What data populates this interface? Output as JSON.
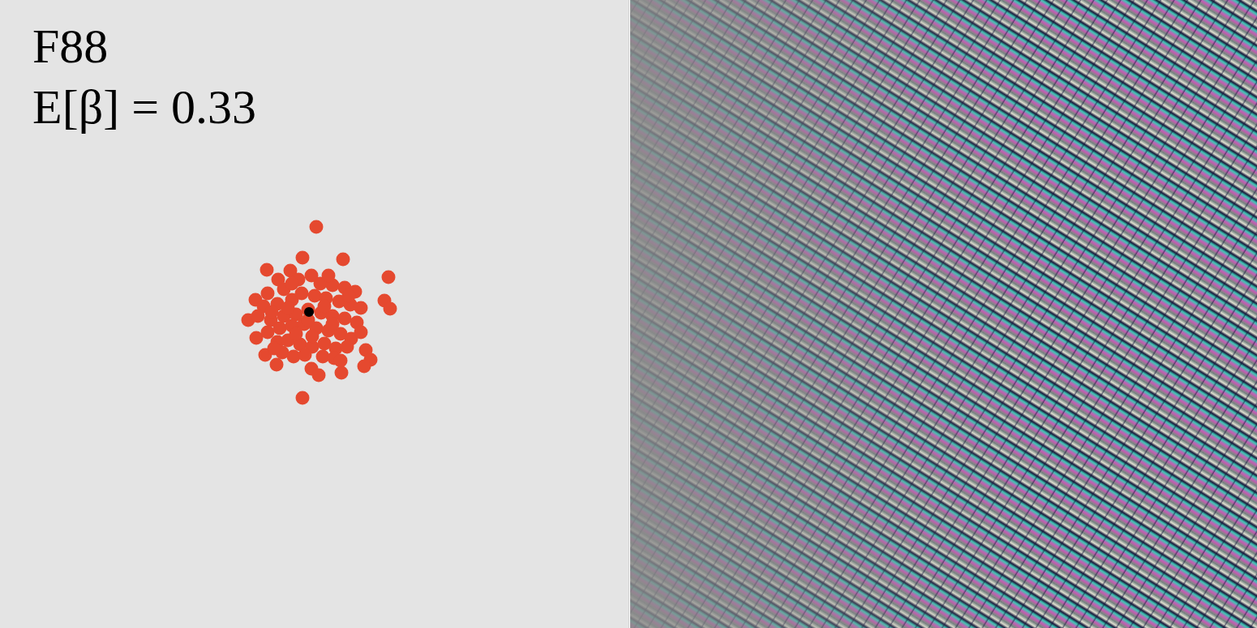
{
  "chart_data": {
    "type": "scatter",
    "annotations": [
      "F88",
      "E[β] = 0.33"
    ],
    "xlim": [
      0,
      775
    ],
    "ylim": [
      775,
      0
    ],
    "xticks": [],
    "yticks": [],
    "tick_labels": false,
    "grid": false,
    "series": [
      {
        "color": "#e5492f",
        "marker": "circle",
        "x": [
          390,
          373,
          423,
          329,
          358,
          384,
          479,
          343,
          368,
          395,
          410,
          425,
          438,
          350,
          330,
          315,
          474,
          481,
          325,
          342,
          360,
          372,
          388,
          402,
          418,
          432,
          445,
          306,
          318,
          334,
          350,
          365,
          380,
          396,
          410,
          425,
          440,
          316,
          330,
          345,
          360,
          375,
          390,
          405,
          420,
          433,
          342,
          355,
          370,
          385,
          400,
          414,
          428,
          327,
          348,
          362,
          376,
          398,
          412,
          451,
          457,
          449,
          341,
          384,
          393,
          421,
          373,
          335,
          355,
          400,
          430,
          365,
          385,
          410,
          338,
          420,
          445,
          360,
          405,
          380
        ],
        "y": [
          280,
          318,
          320,
          333,
          334,
          340,
          342,
          345,
          345,
          350,
          352,
          355,
          360,
          357,
          362,
          370,
          371,
          381,
          378,
          375,
          370,
          362,
          365,
          368,
          372,
          376,
          380,
          395,
          390,
          395,
          390,
          388,
          382,
          386,
          390,
          393,
          398,
          417,
          410,
          405,
          402,
          400,
          405,
          408,
          412,
          418,
          422,
          420,
          425,
          428,
          424,
          430,
          428,
          438,
          435,
          440,
          438,
          440,
          442,
          432,
          444,
          452,
          450,
          455,
          463,
          460,
          491,
          385,
          380,
          378,
          365,
          412,
          415,
          400,
          430,
          445,
          410,
          350,
          340,
          395
        ]
      },
      {
        "color": "#000000",
        "marker": "arrow",
        "x": [
          381
        ],
        "y": [
          385
        ]
      }
    ]
  }
}
